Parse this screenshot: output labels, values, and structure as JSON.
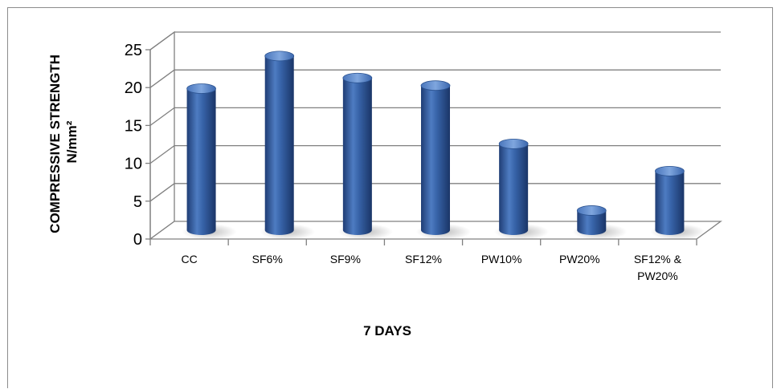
{
  "chart_data": {
    "type": "bar",
    "categories": [
      "CC",
      "SF6%",
      "SF9%",
      "SF12%",
      "PW10%",
      "PW20%",
      "SF12% & PW20%"
    ],
    "category_lines": [
      [
        "CC"
      ],
      [
        "SF6%"
      ],
      [
        "SF9%"
      ],
      [
        "SF12%"
      ],
      [
        "PW10%"
      ],
      [
        "PW20%"
      ],
      [
        "SF12% &",
        "PW20%"
      ]
    ],
    "values": [
      18.7,
      23.0,
      20.1,
      19.1,
      11.4,
      2.6,
      7.8
    ],
    "title": "",
    "xlabel": "7 DAYS",
    "ylabel_lines": [
      "COMPRESSIVE STRENGTH",
      "N/mm²"
    ],
    "ylim": [
      0,
      25
    ],
    "yticks": [
      0,
      5,
      10,
      15,
      20,
      25
    ],
    "grid": true,
    "style": "3d-cylinder",
    "bar_color": "#2E5A9E",
    "bar_dark": "#1F3D75",
    "bar_light": "#6F98D6"
  }
}
